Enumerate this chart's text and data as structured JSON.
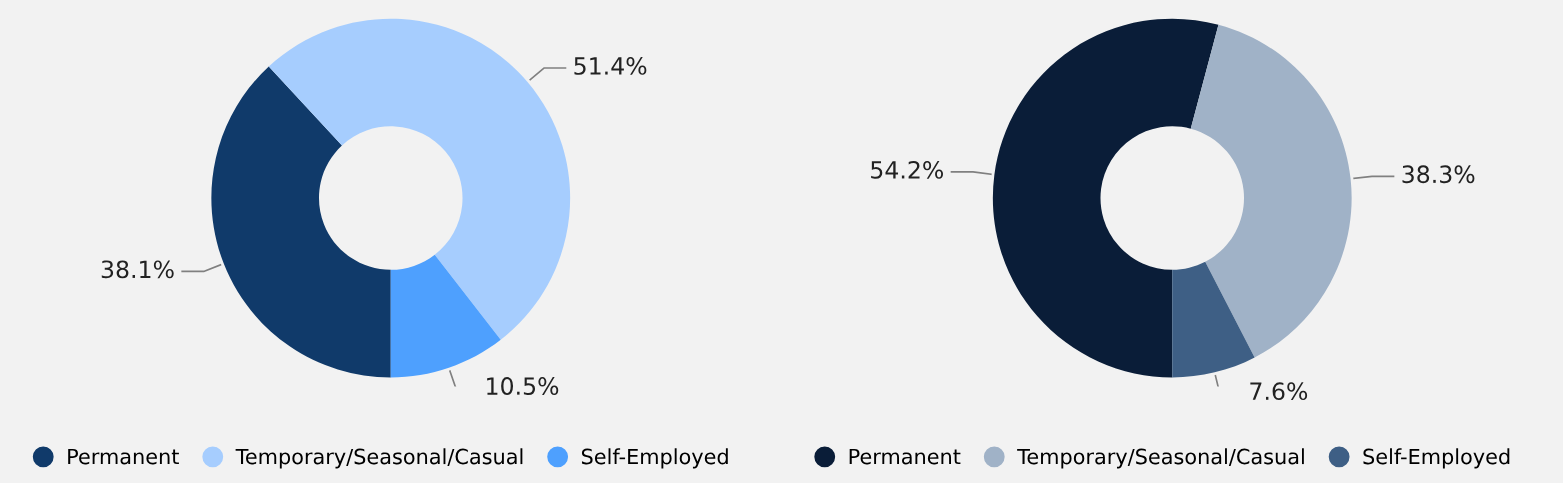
{
  "chart_data": [
    {
      "type": "donut",
      "categories": [
        "Permanent",
        "Temporary/Seasonal/Casual",
        "Self-Employed"
      ],
      "values": [
        38.1,
        51.4,
        10.5
      ],
      "value_labels": [
        "38.1%",
        "51.4%",
        "10.5%"
      ],
      "colors": [
        "#103a6a",
        "#a6cdfe",
        "#4ea0fe"
      ],
      "legend": "bottom left"
    },
    {
      "type": "donut",
      "categories": [
        "Permanent",
        "Temporary/Seasonal/Casual",
        "Self-Employed"
      ],
      "values": [
        54.2,
        38.3,
        7.6
      ],
      "value_labels": [
        "54.2%",
        "38.3%",
        "7.6%"
      ],
      "colors": [
        "#0a1d38",
        "#a0b2c7",
        "#3e5f85"
      ],
      "legend": "bottom left"
    }
  ]
}
